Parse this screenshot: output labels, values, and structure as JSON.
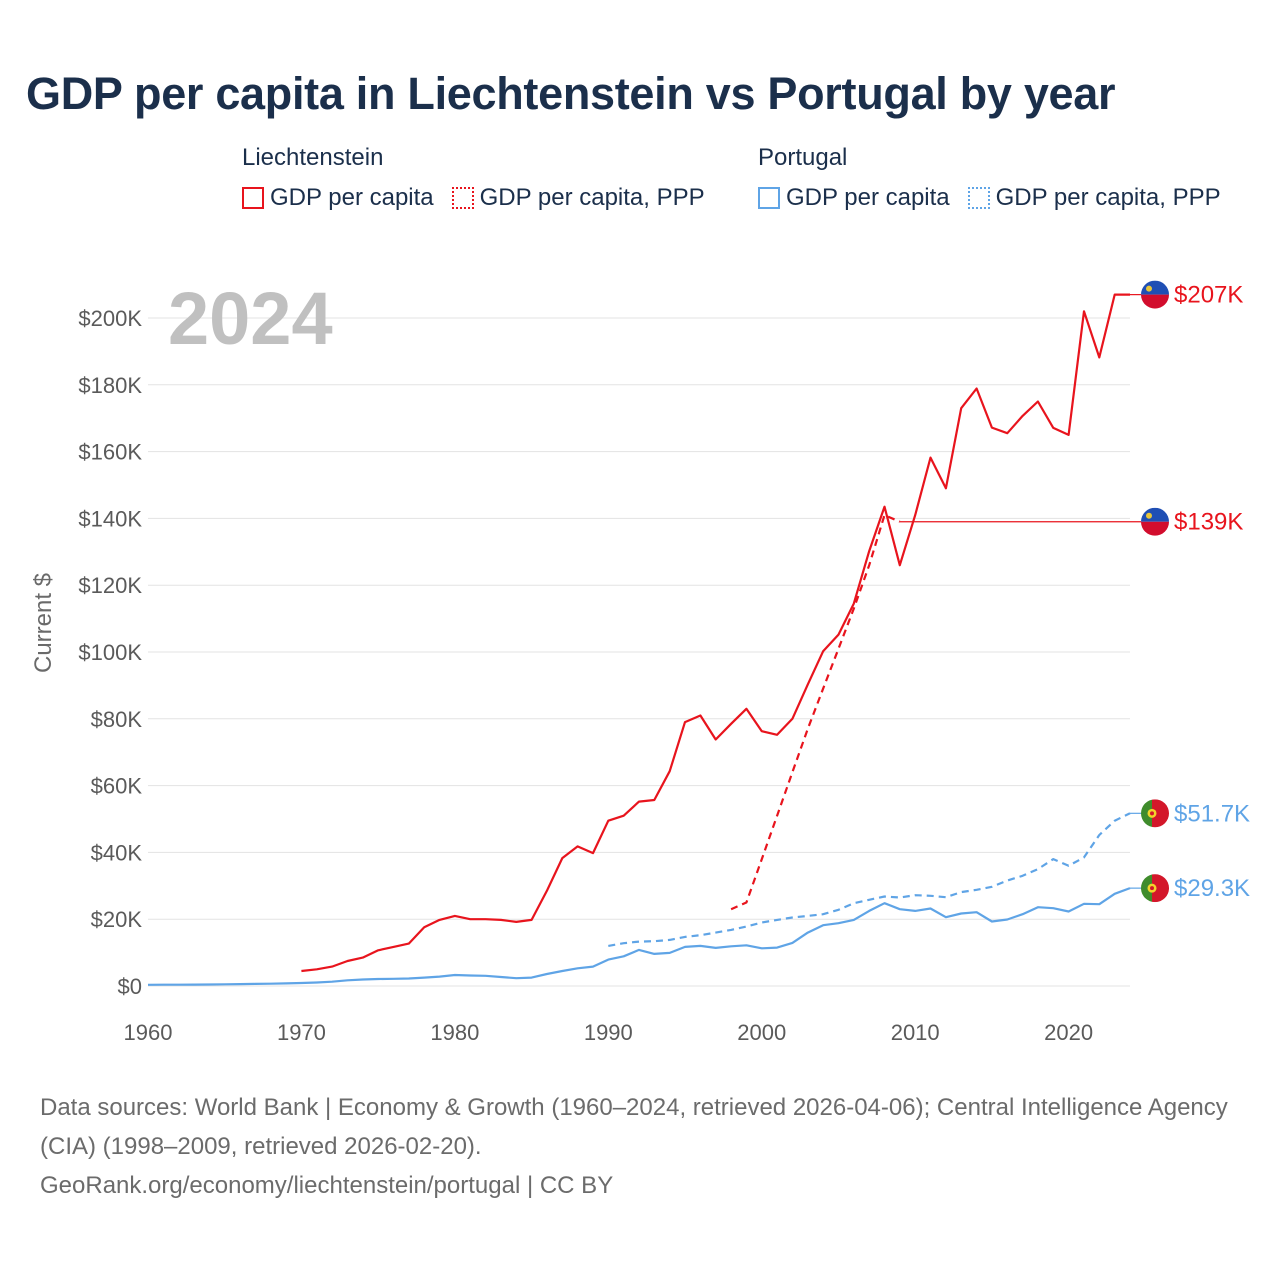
{
  "title": "GDP per capita in Liechtenstein vs Portugal by year",
  "legend": {
    "groups": [
      {
        "name": "Liechtenstein",
        "items": [
          "GDP per capita",
          "GDP per capita, PPP"
        ]
      },
      {
        "name": "Portugal",
        "items": [
          "GDP per capita",
          "GDP per capita, PPP"
        ]
      }
    ]
  },
  "colors": {
    "liechtenstein": "#e8141d",
    "portugal": "#5fa4e6",
    "grid": "#e3e3e3",
    "year_watermark": "#c0c0c0"
  },
  "footer": {
    "sources": "Data sources: World Bank | Economy & Growth (1960–2024, retrieved 2026-04-06); Central Intelligence Agency (CIA) (1998–2009, retrieved 2026-02-20).",
    "credit": "GeoRank.org/economy/liechtenstein/portugal | CC BY"
  },
  "chart_data": {
    "type": "line",
    "year_label": "2024",
    "ylabel": "Current $",
    "ylim": [
      0,
      210000
    ],
    "xlim": [
      1960,
      2024
    ],
    "y_ticks": [
      0,
      20000,
      40000,
      60000,
      80000,
      100000,
      120000,
      140000,
      160000,
      180000,
      200000
    ],
    "y_tick_labels": [
      "$0",
      "$20K",
      "$40K",
      "$60K",
      "$80K",
      "$100K",
      "$120K",
      "$140K",
      "$160K",
      "$180K",
      "$200K"
    ],
    "x_ticks": [
      1960,
      1970,
      1980,
      1990,
      2000,
      2010,
      2020
    ],
    "x_tick_labels": [
      "1960",
      "1970",
      "1980",
      "1990",
      "2000",
      "2010",
      "2020"
    ],
    "series": [
      {
        "name": "Liechtenstein GDP per capita",
        "country": "liechtenstein",
        "style": "solid",
        "end_label": "$207K",
        "x": [
          1970,
          1971,
          1972,
          1973,
          1974,
          1975,
          1976,
          1977,
          1978,
          1979,
          1980,
          1981,
          1982,
          1983,
          1984,
          1985,
          1986,
          1987,
          1988,
          1989,
          1990,
          1991,
          1992,
          1993,
          1994,
          1995,
          1996,
          1997,
          1998,
          1999,
          2000,
          2001,
          2002,
          2003,
          2004,
          2005,
          2006,
          2007,
          2008,
          2009,
          2010,
          2011,
          2012,
          2013,
          2014,
          2015,
          2016,
          2017,
          2018,
          2019,
          2020,
          2021,
          2022,
          2023,
          2024
        ],
        "values": [
          4500,
          5000,
          5800,
          7500,
          8500,
          10700,
          11700,
          12700,
          17600,
          19800,
          21000,
          20000,
          20000,
          19800,
          19200,
          19800,
          28500,
          38300,
          41800,
          39800,
          49500,
          51000,
          55200,
          55700,
          64300,
          79000,
          81000,
          73800,
          78500,
          83000,
          76300,
          75200,
          80000,
          90300,
          100200,
          105200,
          114500,
          130200,
          143500,
          126000,
          141000,
          158200,
          149000,
          173000,
          178900,
          167200,
          165500,
          170700,
          175000,
          167100,
          165000,
          202000,
          188200,
          207000,
          207000
        ]
      },
      {
        "name": "Liechtenstein GDP per capita, PPP",
        "country": "liechtenstein",
        "style": "dashed",
        "end_label": "$139K",
        "x": [
          1998,
          1999,
          2000,
          2001,
          2002,
          2003,
          2004,
          2005,
          2006,
          2007,
          2008,
          2009
        ],
        "values": [
          23000,
          25000,
          38000,
          51000,
          64000,
          77000,
          89000,
          101000,
          113000,
          126000,
          141000,
          139000
        ]
      },
      {
        "name": "Portugal GDP per capita, PPP",
        "country": "portugal",
        "style": "dashed",
        "end_label": "$51.7K",
        "x": [
          1990,
          1991,
          1992,
          1993,
          1994,
          1995,
          1996,
          1997,
          1998,
          1999,
          2000,
          2001,
          2002,
          2003,
          2004,
          2005,
          2006,
          2007,
          2008,
          2009,
          2010,
          2011,
          2012,
          2013,
          2014,
          2015,
          2016,
          2017,
          2018,
          2019,
          2020,
          2021,
          2022,
          2023,
          2024
        ],
        "values": [
          12000,
          12800,
          13300,
          13400,
          13800,
          14700,
          15200,
          16000,
          16800,
          17800,
          19000,
          19800,
          20500,
          21000,
          21500,
          22800,
          24800,
          25800,
          26800,
          26500,
          27200,
          27000,
          26600,
          28100,
          28800,
          29700,
          31600,
          33000,
          35000,
          38000,
          36000,
          38500,
          45200,
          49500,
          51700
        ]
      },
      {
        "name": "Portugal GDP per capita",
        "country": "portugal",
        "style": "solid",
        "end_label": "$29.3K",
        "x": [
          1960,
          1961,
          1962,
          1963,
          1964,
          1965,
          1966,
          1967,
          1968,
          1969,
          1970,
          1971,
          1972,
          1973,
          1974,
          1975,
          1976,
          1977,
          1978,
          1979,
          1980,
          1981,
          1982,
          1983,
          1984,
          1985,
          1986,
          1987,
          1988,
          1989,
          1990,
          1991,
          1992,
          1993,
          1994,
          1995,
          1996,
          1997,
          1998,
          1999,
          2000,
          2001,
          2002,
          2003,
          2004,
          2005,
          2006,
          2007,
          2008,
          2009,
          2010,
          2011,
          2012,
          2013,
          2014,
          2015,
          2016,
          2017,
          2018,
          2019,
          2020,
          2021,
          2022,
          2023,
          2024
        ],
        "values": [
          360,
          380,
          400,
          420,
          460,
          510,
          560,
          620,
          690,
          770,
          900,
          1050,
          1300,
          1700,
          1950,
          2100,
          2150,
          2250,
          2500,
          2800,
          3300,
          3150,
          3050,
          2700,
          2350,
          2500,
          3600,
          4500,
          5300,
          5800,
          7900,
          8900,
          10800,
          9600,
          9900,
          11700,
          12000,
          11400,
          11900,
          12200,
          11300,
          11500,
          12900,
          16000,
          18200,
          18800,
          19800,
          22500,
          24800,
          23000,
          22500,
          23200,
          20600,
          21700,
          22100,
          19300,
          19900,
          21500,
          23600,
          23300,
          22300,
          24600,
          24500,
          27600,
          29300
        ]
      }
    ]
  }
}
